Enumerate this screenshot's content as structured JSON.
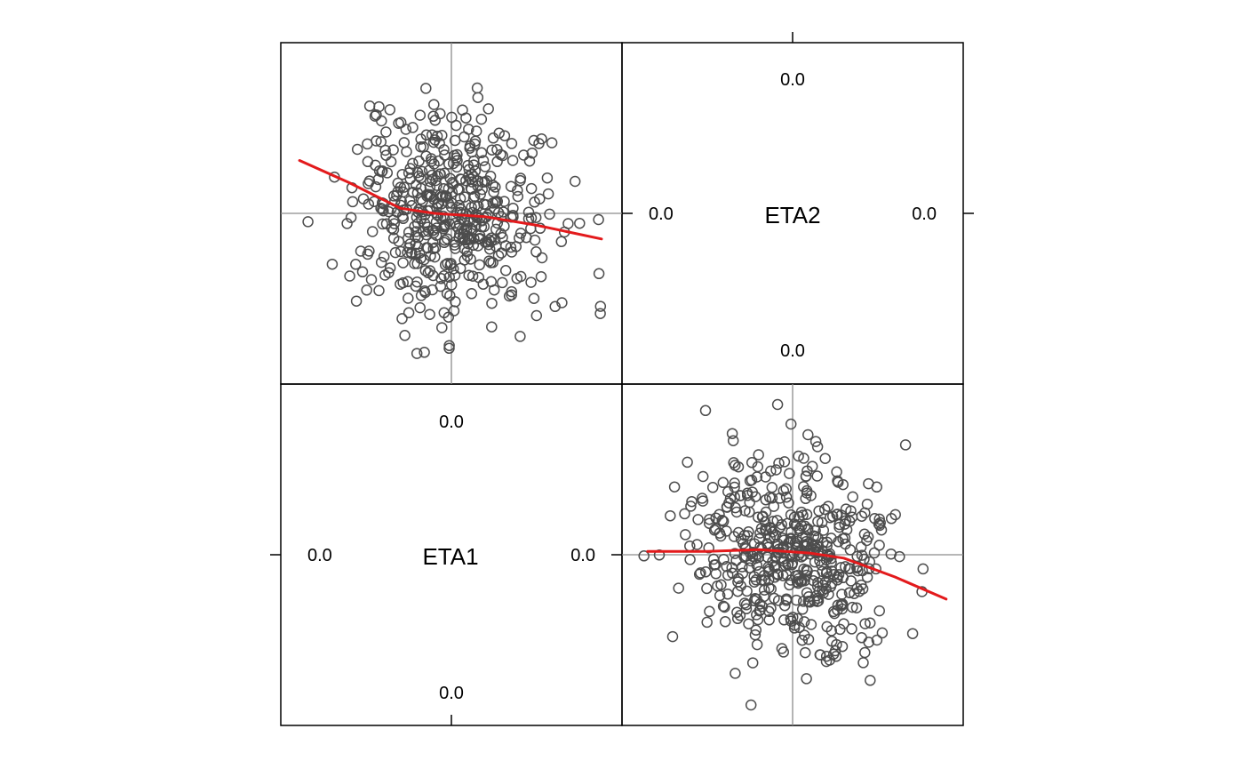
{
  "chart_data": {
    "type": "scatter",
    "variables": [
      "ETA1",
      "ETA2"
    ],
    "zero_label": "0.0",
    "colors": {
      "points": "#4d4d4d",
      "smooth": "#e31a1c",
      "reference_lines": "#8c8c8c"
    },
    "panels": [
      {
        "name": "ETA2-vs-ETA1",
        "position": "top-left",
        "x_var": "ETA1",
        "y_var": "ETA2",
        "xlim": [
          -1.0,
          1.0
        ],
        "ylim": [
          -1.0,
          1.0
        ],
        "points": {
          "n": 500,
          "x_sd": 0.28,
          "y_sd": 0.3,
          "x_max": 0.88,
          "y_max": 0.88,
          "slope": -0.15,
          "seed": 7
        },
        "smooth": [
          [
            -0.89,
            0.31
          ],
          [
            -0.6,
            0.18
          ],
          [
            -0.3,
            0.03
          ],
          [
            -0.1,
            0.0
          ],
          [
            0.2,
            -0.02
          ],
          [
            0.5,
            -0.07
          ],
          [
            0.88,
            -0.15
          ]
        ]
      },
      {
        "name": "ETA1-vs-ETA2",
        "position": "bottom-right",
        "x_var": "ETA2",
        "y_var": "ETA1",
        "xlim": [
          -1.0,
          1.0
        ],
        "ylim": [
          -1.0,
          1.0
        ],
        "points": {
          "n": 500,
          "x_sd": 0.3,
          "y_sd": 0.28,
          "x_max": 0.9,
          "y_max": 0.88,
          "slope": -0.15,
          "seed": 13
        },
        "smooth": [
          [
            -0.85,
            0.02
          ],
          [
            -0.5,
            0.02
          ],
          [
            -0.2,
            0.03
          ],
          [
            0.1,
            0.01
          ],
          [
            0.3,
            -0.02
          ],
          [
            0.6,
            -0.13
          ],
          [
            0.9,
            -0.26
          ]
        ]
      }
    ]
  }
}
